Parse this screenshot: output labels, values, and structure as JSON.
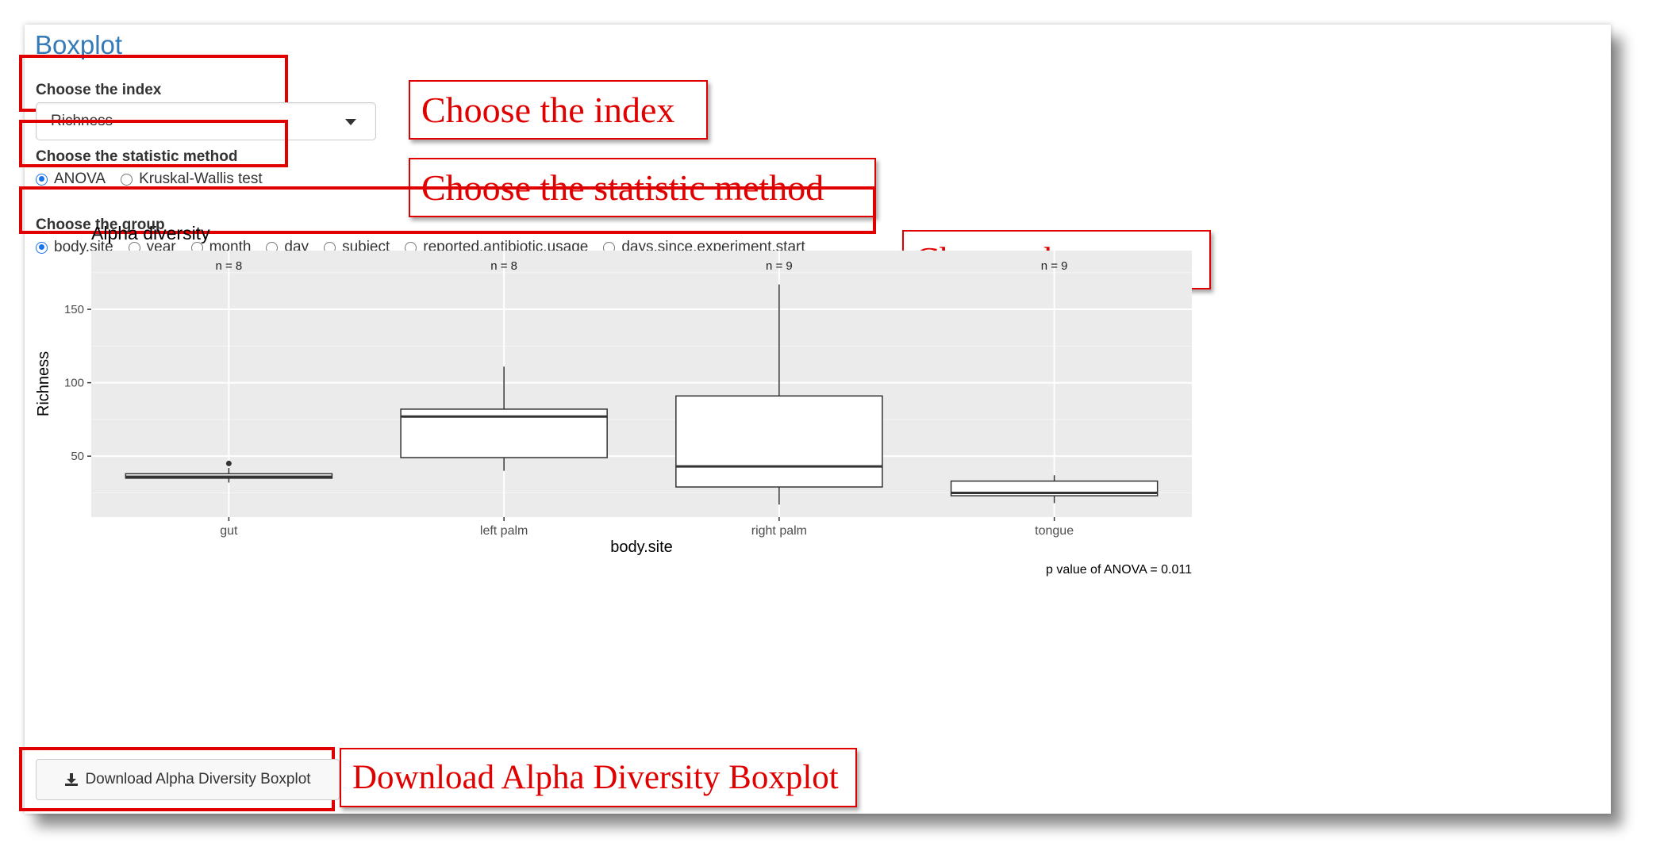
{
  "panel": {
    "title": "Boxplot"
  },
  "index_select": {
    "label": "Choose the index",
    "value": "Richness"
  },
  "method": {
    "label": "Choose the statistic method",
    "options": [
      "ANOVA",
      "Kruskal-Wallis test"
    ],
    "selected": "ANOVA"
  },
  "group": {
    "label": "Choose the group",
    "options": [
      "body.site",
      "year",
      "month",
      "day",
      "subject",
      "reported.antibiotic.usage",
      "days.since.experiment.start"
    ],
    "selected": "body.site"
  },
  "callouts": {
    "index": "Choose the index",
    "method": "Choose the statistic method",
    "group": "Choose the group",
    "download": "Download Alpha Diversity Boxplot"
  },
  "download_button": {
    "label": "Download Alpha Diversity Boxplot",
    "icon": "download-icon"
  },
  "chart_data": {
    "type": "boxplot",
    "title": "Alpha diversity",
    "xlabel": "body.site",
    "ylabel": "Richness",
    "categories": [
      "gut",
      "left palm",
      "right palm",
      "tongue"
    ],
    "counts": [
      "n = 8",
      "n = 8",
      "n = 9",
      "n = 9"
    ],
    "boxes": [
      {
        "category": "gut",
        "whisker_low": 32,
        "q1": 35,
        "median": 36,
        "q3": 38,
        "whisker_high": 42,
        "outliers": [
          45
        ]
      },
      {
        "category": "left palm",
        "whisker_low": 40,
        "q1": 49,
        "median": 77,
        "q3": 82,
        "whisker_high": 111,
        "outliers": []
      },
      {
        "category": "right palm",
        "whisker_low": 17,
        "q1": 29,
        "median": 43,
        "q3": 91,
        "whisker_high": 167,
        "outliers": []
      },
      {
        "category": "tongue",
        "whisker_low": 18,
        "q1": 23,
        "median": 25,
        "q3": 33,
        "whisker_high": 37,
        "outliers": []
      }
    ],
    "yticks": [
      50,
      100,
      150
    ],
    "ylim": [
      8.5,
      190
    ],
    "grid": true,
    "panel_background": "#ebebeb",
    "annotation": "p value of ANOVA = 0.011"
  },
  "colors": {
    "accent": "#337ab7",
    "callout": "#e00000",
    "radio_checked": "#1a73e8"
  }
}
